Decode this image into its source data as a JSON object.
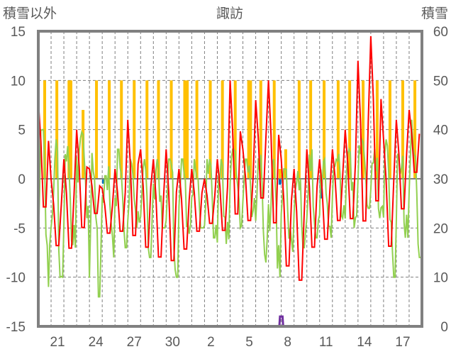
{
  "chart_data": {
    "type": "line",
    "title": "諏訪",
    "ylabel_left": "積雪以外",
    "ylabel_right": "積雪",
    "ylim_left": [
      -15,
      15
    ],
    "ylim_right": [
      0,
      60
    ],
    "yticks_left": [
      "15",
      "10",
      "5",
      "0",
      "-5",
      "-10",
      "-15"
    ],
    "yticks_right": [
      "60",
      "50",
      "40",
      "30",
      "20",
      "10",
      "0"
    ],
    "days": [
      20,
      21,
      22,
      23,
      24,
      25,
      26,
      27,
      28,
      29,
      30,
      31,
      1,
      2,
      3,
      4,
      5,
      6,
      7,
      8,
      9,
      10,
      11,
      12,
      13,
      14,
      15,
      16,
      17,
      18
    ],
    "xtick_labels": [
      "21",
      "24",
      "27",
      "30",
      "2",
      "5",
      "8",
      "11",
      "14",
      "17"
    ],
    "grid": true,
    "colors": {
      "temperature": "#ff0000",
      "other": "#92d050",
      "sunshine": "#ffc000",
      "precip": "#0070c0",
      "snow": "#7030a0",
      "axis": "#808080"
    },
    "series": [
      {
        "name": "temperature",
        "axis": "left",
        "daily_max": [
          8,
          0,
          2,
          5,
          1,
          -1,
          1,
          6,
          3,
          2,
          3,
          1,
          1,
          0,
          2,
          10,
          3,
          8,
          10,
          2,
          1,
          3,
          2,
          3,
          5,
          12,
          14.5,
          4,
          6,
          7
        ],
        "daily_min": [
          -4,
          -7.5,
          -8,
          -6,
          -4,
          -6,
          -6,
          -7,
          -8,
          -9,
          -9.5,
          -8,
          -6,
          -5,
          -6,
          -5,
          -5,
          -3,
          -6,
          -10,
          -11.5,
          -8,
          -7,
          -5,
          -5,
          -6,
          -4,
          -8,
          -4,
          0
        ]
      },
      {
        "name": "other",
        "axis": "left",
        "daily_max": [
          5,
          4,
          5,
          6,
          4,
          2,
          3,
          2,
          2,
          2,
          2,
          2,
          2,
          2,
          2,
          3,
          2,
          3,
          2,
          1,
          2,
          3,
          2,
          4,
          3,
          4,
          3,
          4,
          3,
          6
        ],
        "daily_min": [
          -11,
          -10,
          -7,
          -4,
          -12,
          -8,
          -7,
          -5,
          -8,
          -5,
          -10,
          -6,
          -5,
          -6,
          -7,
          -5,
          -4,
          -9,
          -10,
          -8,
          -7,
          -6,
          -6,
          -4,
          -5,
          -3,
          -4,
          -10,
          -6,
          -8
        ]
      },
      {
        "name": "sunshine",
        "axis": "left",
        "bars": [
          [
            0.5,
            10
          ],
          [
            1.45,
            10
          ],
          [
            2.4,
            10
          ],
          [
            2.55,
            10
          ],
          [
            3.5,
            7
          ],
          [
            4.55,
            10
          ],
          [
            5.55,
            10
          ],
          [
            6.5,
            10
          ],
          [
            7.5,
            10
          ],
          [
            8.5,
            10
          ],
          [
            9.4,
            10
          ],
          [
            10.4,
            10
          ],
          [
            11.45,
            10
          ],
          [
            11.65,
            10
          ],
          [
            12.4,
            10
          ],
          [
            13.45,
            10
          ],
          [
            14.4,
            10
          ],
          [
            15.4,
            10
          ],
          [
            16.45,
            10
          ],
          [
            16.6,
            10
          ],
          [
            17.4,
            10
          ],
          [
            18.45,
            10
          ],
          [
            18.9,
            1
          ],
          [
            19.35,
            3
          ],
          [
            20.4,
            10
          ],
          [
            21.3,
            10
          ],
          [
            22.35,
            10
          ],
          [
            23.45,
            10
          ],
          [
            24.35,
            10
          ],
          [
            25.4,
            10
          ],
          [
            26.5,
            10
          ],
          [
            27.5,
            10
          ],
          [
            28.5,
            10
          ],
          [
            29.45,
            10
          ]
        ]
      },
      {
        "name": "precip",
        "axis": "left",
        "bars": [
          [
            5.1,
            -0.5
          ],
          [
            18.9,
            -0.6
          ],
          [
            22.1,
            -2
          ]
        ]
      },
      {
        "name": "snow",
        "axis": "right",
        "values_by_day": [
          0,
          0,
          0,
          0,
          0,
          0,
          0,
          0,
          0,
          0,
          0,
          0,
          0,
          0,
          0,
          0,
          0,
          0,
          2,
          0,
          0,
          0,
          0,
          0,
          0,
          0,
          0,
          0,
          0,
          0
        ],
        "peak_note": "snow ~2 cm around day 8"
      }
    ]
  }
}
